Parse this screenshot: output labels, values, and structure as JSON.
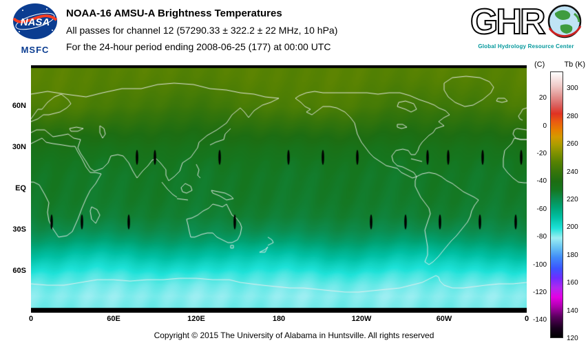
{
  "header": {
    "title": "NOAA-16 AMSU-A Brightness Temperatures",
    "line2": "All passes for channel 12 (57290.33 ± 322.2 ± 22 MHz, 10 hPa)",
    "line3": "For the 24-hour period ending 2008-06-25 (177) at 00:00 UTC",
    "nasa": {
      "label": "NASA",
      "msfc": "MSFC"
    },
    "ghrc": {
      "letters": "GHR",
      "tagline": "Global Hydrology Resource Center"
    }
  },
  "map": {
    "lat_ticks": [
      {
        "label": "60N",
        "lat": 60
      },
      {
        "label": "30N",
        "lat": 30
      },
      {
        "label": "EQ",
        "lat": 0
      },
      {
        "label": "30S",
        "lat": -30
      },
      {
        "label": "60S",
        "lat": -60
      }
    ],
    "lon_ticks": [
      {
        "label": "0",
        "lon": 0
      },
      {
        "label": "60E",
        "lon": 60
      },
      {
        "label": "120E",
        "lon": 120
      },
      {
        "label": "180",
        "lon": 180
      },
      {
        "label": "120W",
        "lon": 240
      },
      {
        "label": "60W",
        "lon": 300
      },
      {
        "label": "0",
        "lon": 360
      }
    ]
  },
  "colorbar": {
    "unit_left": "(C)",
    "unit_right": "Tb (K)",
    "kelvin_ticks": [
      300,
      280,
      260,
      240,
      220,
      200,
      180,
      160,
      140,
      120
    ],
    "celsius_ticks": [
      20,
      0,
      -20,
      -40,
      -60,
      -80,
      -100,
      -120,
      -140
    ],
    "range_k": [
      120,
      312
    ]
  },
  "footer": {
    "copyright": "Copyright © 2015 The University of Alabama in Huntsville. All rights reserved"
  },
  "chart_data": {
    "type": "heatmap",
    "title": "NOAA-16 AMSU-A Brightness Temperatures",
    "subtitle": "All passes for channel 12 (57290.33 ± 322.2 ± 22 MHz, 10 hPa)",
    "period": "24-hour period ending 2008-06-25 (177) at 00:00 UTC",
    "channel": 12,
    "frequency_mhz": "57290.33 ± 322.2 ± 22",
    "level": "10 hPa",
    "units": "K",
    "lon_range": [
      0,
      360
    ],
    "lat_range": [
      -90,
      90
    ],
    "colorbar_range_k": [
      120,
      312
    ],
    "colorbar_stops": [
      [
        120,
        "#000000"
      ],
      [
        127,
        "#1a0020"
      ],
      [
        135,
        "#5a005e"
      ],
      [
        142,
        "#aa00aa"
      ],
      [
        149,
        "#e400e4"
      ],
      [
        156,
        "#b128f0"
      ],
      [
        163,
        "#6f2cff"
      ],
      [
        170,
        "#3b55ff"
      ],
      [
        178,
        "#418cf8"
      ],
      [
        185,
        "#67c2f2"
      ],
      [
        192,
        "#9ceef2"
      ],
      [
        199,
        "#1ee2d8"
      ],
      [
        207,
        "#00bfa2"
      ],
      [
        214,
        "#00a476"
      ],
      [
        221,
        "#0d8a4a"
      ],
      [
        227,
        "#15761f"
      ],
      [
        233,
        "#1d6d12"
      ],
      [
        240,
        "#37750a"
      ],
      [
        247,
        "#578202"
      ],
      [
        253,
        "#7d9000"
      ],
      [
        259,
        "#a89c00"
      ],
      [
        265,
        "#d39a00"
      ],
      [
        270,
        "#e68000"
      ],
      [
        276,
        "#ea5c10"
      ],
      [
        282,
        "#e03222"
      ],
      [
        288,
        "#d9605e"
      ],
      [
        295,
        "#e39693"
      ],
      [
        302,
        "#f0c9c7"
      ],
      [
        308,
        "#f9e9e8"
      ],
      [
        312,
        "#ffffff"
      ]
    ],
    "latitude_profile_k": [
      [
        90,
        247
      ],
      [
        80,
        246.5
      ],
      [
        70,
        245
      ],
      [
        60,
        243
      ],
      [
        50,
        238.5
      ],
      [
        40,
        233.5
      ],
      [
        30,
        229.5
      ],
      [
        20,
        227
      ],
      [
        10,
        226
      ],
      [
        0,
        225.8
      ],
      [
        -10,
        225.3
      ],
      [
        -20,
        224
      ],
      [
        -30,
        220.5
      ],
      [
        -38,
        215.5
      ],
      [
        -46,
        208.5
      ],
      [
        -54,
        202.5
      ],
      [
        -62,
        197.5
      ],
      [
        -70,
        194.5
      ],
      [
        -78,
        193
      ],
      [
        -90,
        194.5
      ]
    ],
    "data_gap_marks": [
      {
        "lat": 23,
        "lons": [
          77,
          90,
          137,
          187,
          212,
          237,
          288,
          303,
          328,
          356
        ]
      },
      {
        "lat": -24,
        "lons": [
          15,
          37,
          71,
          148,
          247,
          272,
          297,
          326,
          352
        ]
      }
    ]
  }
}
